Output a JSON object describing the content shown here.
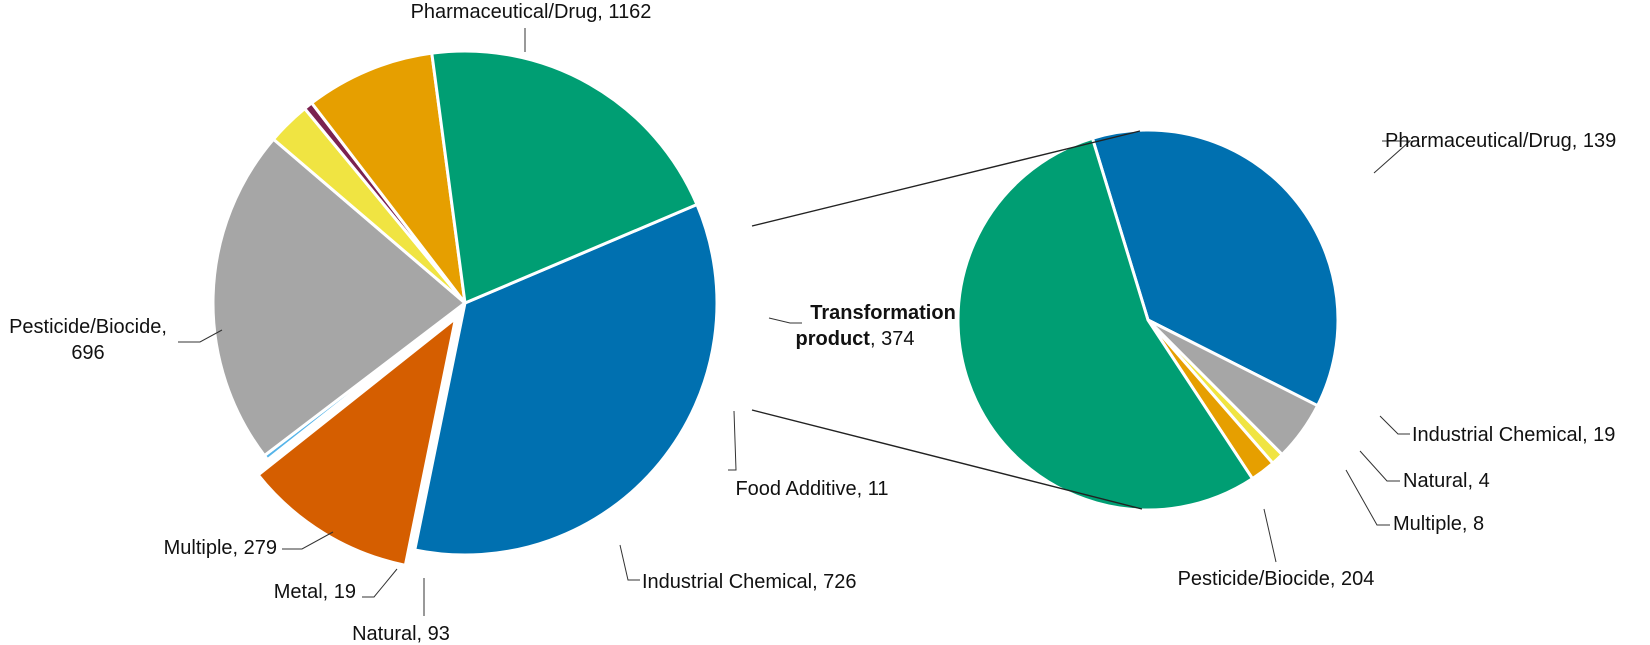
{
  "chart_data": [
    {
      "type": "pie",
      "slices": [
        {
          "category": "Pharmaceutical/Drug",
          "value": 1162,
          "color": "#0070B0"
        },
        {
          "category": "Transformation product",
          "value": 374,
          "color": "#D55E00",
          "exploded": true
        },
        {
          "category": "Food Additive",
          "value": 11,
          "color": "#56B4E9"
        },
        {
          "category": "Industrial Chemical",
          "value": 726,
          "color": "#A6A6A6"
        },
        {
          "category": "Natural",
          "value": 93,
          "color": "#F0E442"
        },
        {
          "category": "Metal",
          "value": 19,
          "color": "#7B2250"
        },
        {
          "category": "Multiple",
          "value": 279,
          "color": "#E69F00"
        },
        {
          "category": "Pesticide/Biocide",
          "value": 696,
          "color": "#009E73"
        }
      ]
    },
    {
      "type": "pie",
      "breakdown_of": "Transformation product",
      "slices": [
        {
          "category": "Pharmaceutical/Drug",
          "value": 139,
          "color": "#0070B0"
        },
        {
          "category": "Industrial Chemical",
          "value": 19,
          "color": "#A6A6A6"
        },
        {
          "category": "Natural",
          "value": 4,
          "color": "#F0E442"
        },
        {
          "category": "Multiple",
          "value": 8,
          "color": "#E69F00"
        },
        {
          "category": "Pesticide/Biocide",
          "value": 204,
          "color": "#009E73"
        }
      ]
    }
  ],
  "labels": {
    "main": {
      "pharma": "Pharmaceutical/Drug, 1162",
      "pesticide_line1": "Pesticide/Biocide,",
      "pesticide_line2": "696",
      "transformation_bold_1": "Transformation",
      "transformation_bold_2": "product",
      "transformation_value": ", 374",
      "food": "Food Additive, 11",
      "industrial": "Industrial Chemical, 726",
      "natural": "Natural, 93",
      "metal": "Metal, 19",
      "multiple": "Multiple, 279"
    },
    "detail": {
      "pharma": "Pharmaceutical/Drug, 139",
      "industrial": "Industrial Chemical, 19",
      "natural": "Natural, 4",
      "multiple": "Multiple, 8",
      "pesticide": "Pesticide/Biocide, 204"
    }
  }
}
